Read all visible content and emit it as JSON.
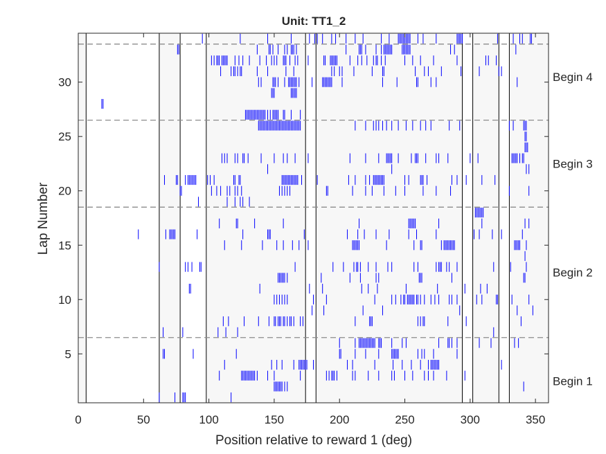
{
  "chart_data": {
    "type": "raster",
    "title": "Unit: TT1_2",
    "xlabel": "Position relative to reward 1 (deg)",
    "ylabel": "Lap Number",
    "xlim": [
      0,
      360
    ],
    "ylim": [
      0.5,
      34.5
    ],
    "xticks": [
      0,
      50,
      100,
      150,
      200,
      250,
      300,
      350
    ],
    "yticks": [
      5,
      10,
      15,
      20,
      25,
      30
    ],
    "grid": false,
    "spike_color": "#0000ff",
    "zone_fill": "#f7f7f7",
    "zones": [
      [
        0,
        6
      ],
      [
        62,
        78
      ],
      [
        98,
        174
      ],
      [
        182,
        294
      ],
      [
        302,
        322
      ],
      [
        330,
        360
      ]
    ],
    "block_boundaries": [
      6.5,
      18.5,
      26.5,
      33.5
    ],
    "block_labels": [
      {
        "text": "Begin 1",
        "lap": 2.5
      },
      {
        "text": "Begin 2",
        "lap": 12.5
      },
      {
        "text": "Begin 3",
        "lap": 22.5
      },
      {
        "text": "Begin 4",
        "lap": 30.5
      }
    ],
    "spikes": [
      {
        "lap": 1,
        "x": [
          62,
          74,
          80,
          81,
          82,
          117
        ]
      },
      {
        "lap": 2,
        "x": [
          150,
          151,
          152,
          153,
          154,
          155,
          156,
          158,
          160,
          341
        ]
      },
      {
        "lap": 3,
        "x": [
          108,
          125,
          126,
          127,
          128,
          129,
          130,
          131,
          132,
          133,
          134,
          135,
          137,
          145,
          150,
          170,
          190,
          192,
          194,
          195,
          196,
          198,
          210,
          212,
          222,
          230,
          240,
          242,
          250,
          256,
          265,
          268,
          272,
          282,
          296
        ]
      },
      {
        "lap": 4,
        "x": [
          112,
          148,
          152,
          156,
          165,
          169,
          170,
          171,
          172,
          173,
          174,
          175,
          180,
          206,
          210,
          227,
          241,
          248,
          255,
          262,
          268,
          270,
          271,
          272,
          273,
          274,
          275,
          276,
          324
        ]
      },
      {
        "lap": 5,
        "x": [
          65,
          66,
          88,
          121,
          200,
          201,
          212,
          220,
          230,
          240,
          241,
          242,
          243,
          244,
          245,
          260,
          263,
          265,
          272,
          290
        ]
      },
      {
        "lap": 6,
        "x": [
          200,
          212,
          215,
          216,
          217,
          218,
          219,
          220,
          221,
          222,
          223,
          224,
          225,
          226,
          227,
          230,
          231,
          232,
          240,
          248,
          251,
          276,
          283,
          284,
          286,
          290,
          307,
          316,
          334,
          337
        ]
      },
      {
        "lap": 7,
        "x": [
          65,
          80,
          107,
          113,
          122,
          318
        ]
      },
      {
        "lap": 8,
        "x": [
          111,
          115,
          127,
          138,
          146,
          150,
          151,
          153,
          154,
          155,
          157,
          158,
          160,
          162,
          163,
          165,
          170,
          172,
          212,
          223,
          224,
          225,
          260,
          262,
          264,
          265,
          283,
          297,
          339
        ]
      },
      {
        "lap": 9,
        "x": [
          179,
          188,
          218,
          233,
          292,
          336,
          348
        ]
      },
      {
        "lap": 10,
        "x": [
          150,
          152,
          154,
          156,
          158,
          160,
          180,
          190,
          227,
          240,
          243,
          247,
          249,
          250,
          252,
          253,
          254,
          255,
          256,
          257,
          259,
          260,
          262,
          265,
          270,
          273,
          276,
          284,
          286,
          290,
          305,
          309,
          320,
          321,
          332,
          345
        ]
      },
      {
        "lap": 11,
        "x": [
          85,
          86,
          139,
          177,
          187,
          217,
          222,
          229,
          251,
          275,
          296,
          308,
          313
        ]
      },
      {
        "lap": 12,
        "x": [
          153,
          154,
          155,
          156,
          157,
          158,
          160,
          186,
          208,
          216,
          228,
          230,
          261,
          262,
          263,
          286,
          341,
          342
        ]
      },
      {
        "lap": 13,
        "x": [
          62,
          82,
          84,
          87,
          93,
          94,
          166,
          195,
          203,
          211,
          213,
          214,
          216,
          222,
          228,
          237,
          240,
          257,
          260,
          274,
          276,
          277,
          278,
          282,
          284,
          290,
          318,
          331,
          343
        ]
      },
      {
        "lap": 14,
        "x": [
          342
        ]
      },
      {
        "lap": 15,
        "x": [
          112,
          125,
          141,
          152,
          157,
          164,
          169,
          176,
          210,
          211,
          212,
          213,
          214,
          215,
          236,
          257,
          262,
          263,
          278,
          280,
          281,
          282,
          283,
          284,
          285,
          286,
          287,
          288,
          334,
          335,
          336,
          337,
          338,
          343
        ]
      },
      {
        "lap": 16,
        "x": [
          46,
          67,
          70,
          71,
          72,
          73,
          74,
          91,
          126,
          145,
          146,
          147,
          173,
          206,
          214,
          219,
          228,
          238,
          253,
          259,
          274,
          303,
          307,
          317,
          324,
          340
        ]
      },
      {
        "lap": 17,
        "x": [
          108,
          121,
          122,
          135,
          157,
          215,
          253,
          254,
          255,
          256,
          257,
          258,
          276,
          309,
          342,
          345
        ]
      },
      {
        "lap": 18,
        "x": [
          304,
          305,
          306,
          307,
          308,
          309,
          310
        ]
      },
      {
        "lap": 19,
        "x": [
          92,
          114,
          120,
          124,
          126,
          131
        ]
      },
      {
        "lap": 20,
        "x": [
          78,
          79,
          102,
          106,
          109,
          114,
          116,
          120,
          122,
          125,
          154,
          156,
          158,
          160,
          162,
          190,
          191,
          210,
          220,
          225,
          234,
          243,
          250,
          264,
          274,
          285,
          330,
          345
        ]
      },
      {
        "lap": 21,
        "x": [
          66,
          75,
          76,
          82,
          84,
          85,
          86,
          87,
          88,
          89,
          90,
          99,
          101,
          104,
          119,
          120,
          123,
          124,
          156,
          157,
          158,
          159,
          160,
          161,
          162,
          163,
          164,
          165,
          166,
          167,
          168,
          171,
          183,
          207,
          212,
          220,
          223,
          226,
          227,
          228,
          229,
          230,
          231,
          232,
          233,
          234,
          250,
          253,
          262,
          263,
          264,
          267,
          286,
          290,
          297,
          309,
          319
        ]
      },
      {
        "lap": 22,
        "x": [
          145,
          240,
          343,
          345
        ]
      },
      {
        "lap": 23,
        "x": [
          110,
          112,
          114,
          120,
          122,
          126,
          127,
          130,
          140,
          150,
          157,
          160,
          166,
          176,
          208,
          220,
          230,
          236,
          237,
          238,
          239,
          240,
          245,
          255,
          258,
          259,
          260,
          266,
          274,
          276,
          283,
          300,
          306,
          332,
          333,
          334,
          335,
          336,
          338,
          340,
          341
        ]
      },
      {
        "lap": 24,
        "x": [
          342,
          343,
          344
        ]
      },
      {
        "lap": 25,
        "x": [
          342,
          343
        ]
      },
      {
        "lap": 26,
        "x": [
          138,
          139,
          140,
          141,
          142,
          143,
          144,
          145,
          146,
          147,
          148,
          149,
          150,
          151,
          152,
          153,
          154,
          155,
          156,
          157,
          158,
          159,
          160,
          161,
          162,
          163,
          164,
          165,
          166,
          167,
          168,
          169,
          170,
          212,
          220,
          226,
          228,
          230,
          233,
          236,
          240,
          245,
          251,
          256,
          262,
          266,
          270,
          284,
          292,
          330,
          333,
          341,
          342,
          343
        ]
      },
      {
        "lap": 27,
        "x": [
          128,
          129,
          130,
          131,
          132,
          133,
          134,
          135,
          136,
          137,
          138,
          139,
          140,
          141,
          142,
          143,
          145,
          147,
          149,
          150,
          151,
          152,
          153,
          157,
          158,
          163,
          170
        ]
      },
      {
        "lap": 28,
        "x": [
          18,
          19
        ]
      },
      {
        "lap": 29,
        "x": [
          148,
          149,
          150,
          163,
          164,
          165,
          166,
          167
        ]
      },
      {
        "lap": 30,
        "x": [
          138,
          140,
          149,
          150,
          151,
          153,
          158,
          161,
          162,
          163,
          164,
          165,
          166,
          167,
          169,
          179,
          187,
          188,
          189,
          190,
          191,
          192,
          193,
          194,
          202,
          233,
          244,
          259,
          260,
          270,
          274,
          336
        ]
      },
      {
        "lap": 31,
        "x": [
          109,
          117,
          119,
          120,
          122,
          124,
          125,
          137,
          145,
          159,
          165,
          194,
          196,
          200,
          202,
          211,
          225,
          233,
          234,
          258,
          265,
          268,
          278,
          293,
          307,
          322,
          324
        ]
      },
      {
        "lap": 32,
        "x": [
          102,
          104,
          106,
          107,
          108,
          110,
          111,
          112,
          113,
          114,
          120,
          123,
          126,
          131,
          139,
          144,
          148,
          150,
          152,
          157,
          158,
          159,
          162,
          166,
          168,
          176,
          188,
          189,
          193,
          194,
          195,
          196,
          197,
          198,
          208,
          214,
          217,
          221,
          226,
          228,
          229,
          232,
          235,
          250,
          256,
          262,
          272,
          290,
          312,
          314,
          320
        ]
      },
      {
        "lap": 33,
        "x": [
          76,
          77,
          137,
          146,
          147,
          149,
          153,
          158,
          160,
          163,
          164,
          165,
          167,
          205,
          215,
          216,
          217,
          220,
          228,
          232,
          234,
          235,
          236,
          237,
          238,
          239,
          240,
          248,
          249,
          250,
          251,
          252,
          253,
          254,
          285,
          288,
          335
        ]
      },
      {
        "lap": 34,
        "x": [
          95,
          124,
          145,
          163,
          177,
          181,
          183,
          187,
          194,
          197,
          205,
          212,
          218,
          232,
          238,
          245,
          246,
          247,
          248,
          249,
          250,
          251,
          252,
          253,
          254,
          260,
          264,
          274,
          290,
          291,
          292,
          293,
          294,
          321,
          333,
          338,
          340,
          346,
          347
        ]
      }
    ]
  }
}
